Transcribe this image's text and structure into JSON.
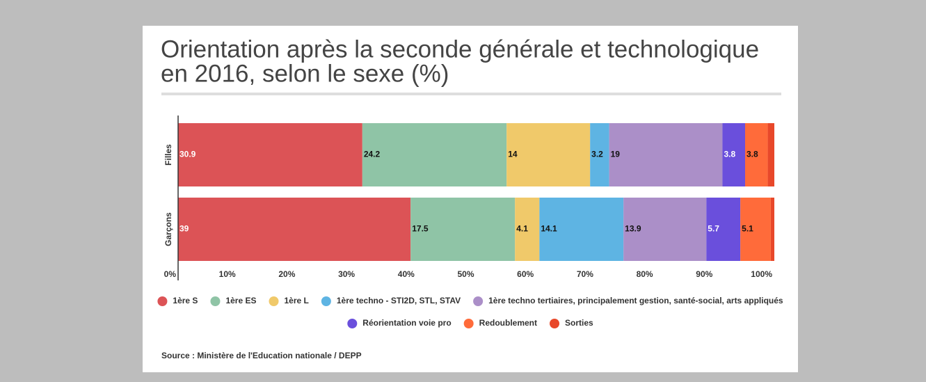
{
  "chart_data": {
    "type": "stacked_barh",
    "title": [
      "Orientation après la seconde générale et technologique",
      "en 2016, selon le sexe (%)"
    ],
    "categories": [
      "Filles",
      "Garçons"
    ],
    "series": [
      {
        "name": "1ère S",
        "color": "#dc5356",
        "values": [
          30.9,
          39
        ]
      },
      {
        "name": "1ère ES",
        "color": "#8fc4a6",
        "values": [
          24.2,
          17.5
        ]
      },
      {
        "name": "1ère L",
        "color": "#f0c96a",
        "values": [
          14,
          4.1
        ]
      },
      {
        "name": "1ère techno - STI2D, STL, STAV",
        "color": "#5eb4e3",
        "values": [
          3.2,
          14.1
        ]
      },
      {
        "name": "1ère techno tertiaires, principalement gestion, santé-social, arts appliqués",
        "color": "#ab8fc8",
        "values": [
          19,
          13.9
        ]
      },
      {
        "name": "Réorientation voie pro",
        "color": "#6a4fdc",
        "values": [
          3.8,
          5.7
        ]
      },
      {
        "name": "Redoublement",
        "color": "#ff6b3a",
        "values": [
          3.8,
          5.1
        ]
      },
      {
        "name": "Sorties",
        "color": "#e8482a",
        "values": [
          1.1,
          0.6
        ]
      }
    ],
    "xlim": [
      0,
      100
    ],
    "xticks": [
      {
        "value": 0,
        "label": "0%"
      },
      {
        "value": 10,
        "label": "10%"
      },
      {
        "value": 20,
        "label": "20%"
      },
      {
        "value": 30,
        "label": "30%"
      },
      {
        "value": 40,
        "label": "40%"
      },
      {
        "value": 50,
        "label": "50%"
      },
      {
        "value": 60,
        "label": "60%"
      },
      {
        "value": 70,
        "label": "70%"
      },
      {
        "value": 80,
        "label": "80%"
      },
      {
        "value": 90,
        "label": "90%"
      },
      {
        "value": 100,
        "label": "100%"
      }
    ],
    "source": "Source : Ministère de l'Education nationale / DEPP"
  }
}
